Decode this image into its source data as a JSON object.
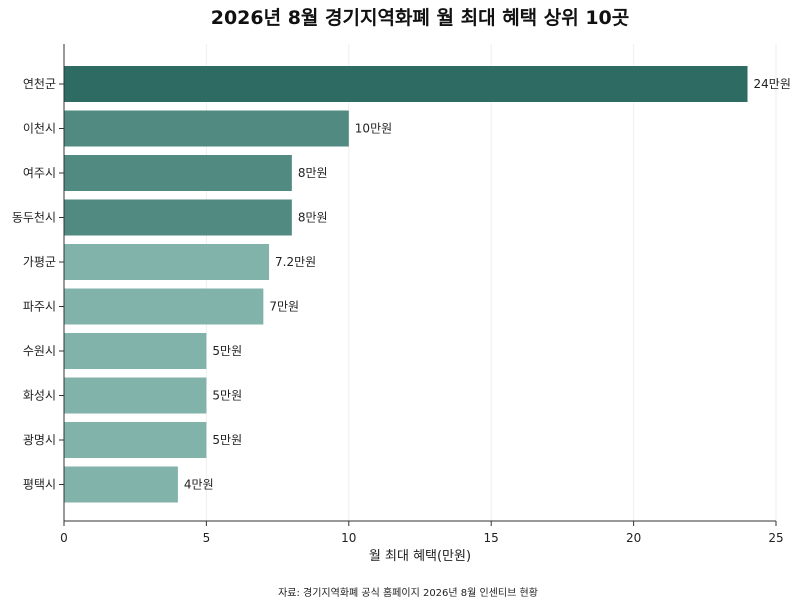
{
  "chart_data": {
    "type": "bar",
    "orientation": "horizontal",
    "title": "2026년 8월 경기지역화폐 월 최대 혜택 상위 10곳",
    "categories": [
      "연천군",
      "이천시",
      "여주시",
      "동두천시",
      "가평군",
      "파주시",
      "수원시",
      "화성시",
      "광명시",
      "평택시"
    ],
    "values": [
      24,
      10,
      8,
      8,
      7.2,
      7,
      5,
      5,
      5,
      4
    ],
    "data_labels": [
      "24만원",
      "10만원",
      "8만원",
      "8만원",
      "7.2만원",
      "7만원",
      "5만원",
      "5만원",
      "5만원",
      "4만원"
    ],
    "bar_colors": [
      "#2e6b63",
      "#518a80",
      "#518a80",
      "#518a80",
      "#82b3ab",
      "#82b3ab",
      "#82b3ab",
      "#82b3ab",
      "#82b3ab",
      "#82b3ab"
    ],
    "xlabel": "월 최대 혜택(만원)",
    "ylabel": "",
    "xlim": [
      0,
      25
    ],
    "xticks": [
      "0",
      "5",
      "10",
      "15",
      "20",
      "25"
    ],
    "grid": "vertical",
    "source": "자료: 경기지역화폐 공식 홈페이지 2026년 8월 인센티브 현황"
  }
}
